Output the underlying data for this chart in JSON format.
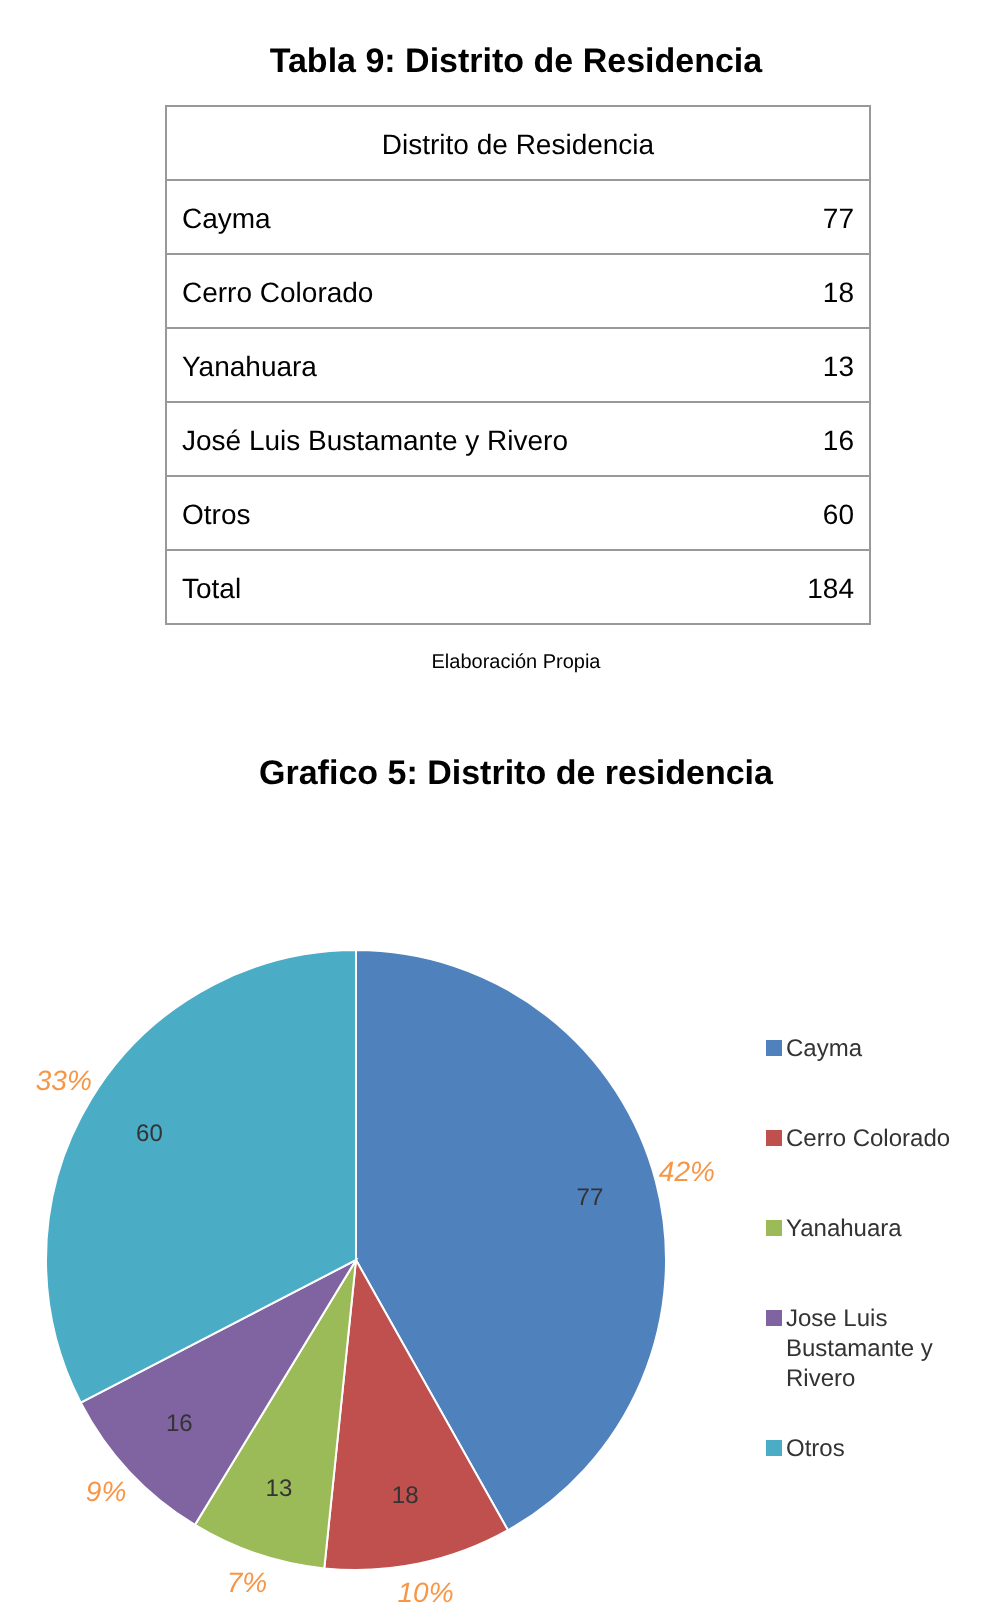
{
  "chart_data": [
    {
      "type": "other",
      "title": "Tabla 9: Distrito de Residencia",
      "subtitle": "Distrito de Residencia",
      "categories": [
        "Cayma",
        "Cerro Colorado",
        "Yanahuara",
        "José Luis Bustamante y Rivero",
        "Otros",
        "Total"
      ],
      "values": [
        77,
        18,
        13,
        16,
        60,
        184
      ],
      "data_labels": true,
      "annotations": [
        "Elaboración Propia"
      ]
    },
    {
      "type": "pie",
      "title": "Grafico 5: Distrito de residencia",
      "categories": [
        "Cayma",
        "Cerro Colorado",
        "Yanahuara",
        "Jose Luis Bustamante y Rivero",
        "Otros"
      ],
      "values": [
        77,
        18,
        13,
        16,
        60
      ],
      "colors": [
        "#4f81bd",
        "#c0504d",
        "#9bbb59",
        "#8064a2",
        "#4bacc6"
      ],
      "data_labels": true,
      "annotations": [
        "42%",
        "10%",
        "7%",
        "9%",
        "33%"
      ],
      "legend": "right"
    }
  ]
}
